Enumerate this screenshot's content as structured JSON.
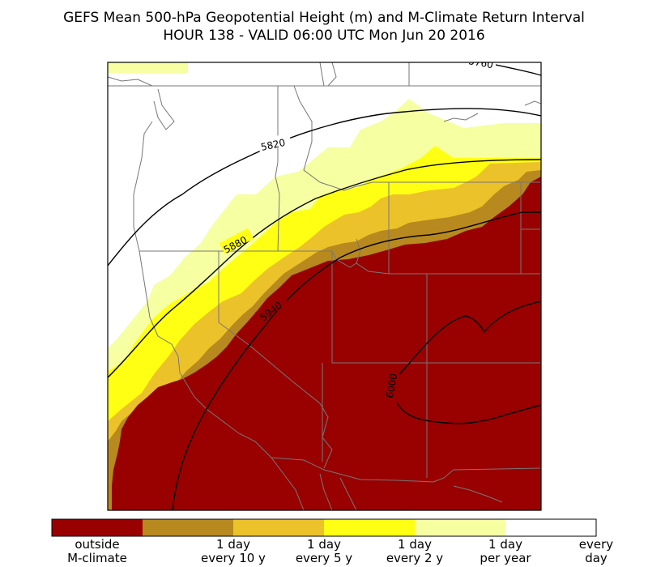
{
  "title": {
    "line1": "GEFS Mean 500-hPa Geopotential Height (m) and M-Climate Return Interval",
    "line2": "HOUR 138 - VALID 06:00 UTC Mon Jun 20 2016"
  },
  "colors": {
    "outside_mclimate": "#990000",
    "every_10y": "#b8891e",
    "every_5y": "#ecc22b",
    "every_2y": "#ffff14",
    "per_year": "#f6ffa1",
    "every_day": "#ffffff",
    "borders": "#777777",
    "contours": "#000000"
  },
  "contours": [
    {
      "label": "5760"
    },
    {
      "label": "5820"
    },
    {
      "label": "5880"
    },
    {
      "label": "5940"
    },
    {
      "label": "6000"
    }
  ],
  "colorbar": [
    {
      "line1": "outside",
      "line2": "M-climate",
      "color": "#990000"
    },
    {
      "line1": "1 day",
      "line2": "every 10 y",
      "color": "#b8891e"
    },
    {
      "line1": "1 day",
      "line2": "every 5 y",
      "color": "#ecc22b"
    },
    {
      "line1": "1 day",
      "line2": "every 2 y",
      "color": "#ffff14"
    },
    {
      "line1": "1 day",
      "line2": "per year",
      "color": "#f6ffa1"
    },
    {
      "line1": "every",
      "line2": "day",
      "color": "#ffffff"
    }
  ]
}
